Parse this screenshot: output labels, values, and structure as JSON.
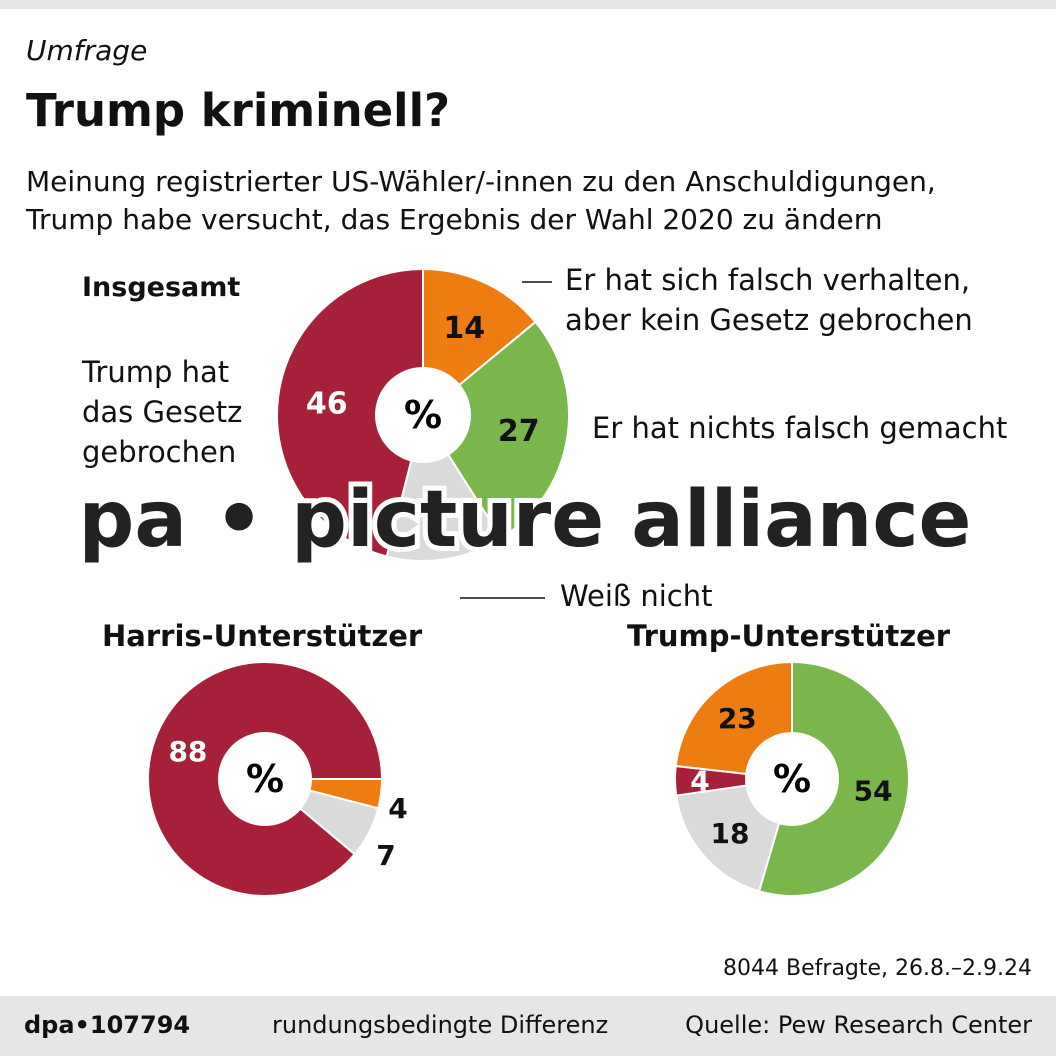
{
  "header": {
    "kicker": "Umfrage",
    "title": "Trump kriminell?",
    "subtitle_1": "Meinung registrierter US-Wähler/-innen zu den Anschuldigungen,",
    "subtitle_2": "Trump habe versucht, das Ergebnis der Wahl 2020 zu ändern"
  },
  "legend": {
    "broke_law_1": "Trump hat",
    "broke_law_2": "das Gesetz",
    "broke_law_3": "gebrochen",
    "wrong_1": "Er hat sich falsch verhalten,",
    "wrong_2": "aber kein Gesetz gebrochen",
    "nothing": "Er hat nichts falsch gemacht",
    "dont_know": "Weiß nicht"
  },
  "colors": {
    "broke_law": "#a6203a",
    "wrong": "#ee7d11",
    "nothing": "#79b74c",
    "dont_know": "#dadada"
  },
  "chart_data": [
    {
      "type": "pie",
      "title": "Insgesamt",
      "unit": "%",
      "slices": [
        {
          "category": "wrong",
          "value": 14
        },
        {
          "category": "nothing",
          "value": 27
        },
        {
          "category": "dont_know",
          "value": 13,
          "label_hidden": true
        },
        {
          "category": "broke_law",
          "value": 46
        }
      ]
    },
    {
      "type": "pie",
      "title": "Harris-Unterstützer",
      "unit": "%",
      "slices": [
        {
          "category": "wrong",
          "value": 4
        },
        {
          "category": "dont_know",
          "value": 7
        },
        {
          "category": "broke_law",
          "value": 88
        }
      ]
    },
    {
      "type": "pie",
      "title": "Trump-Unterstützer",
      "unit": "%",
      "slices": [
        {
          "category": "nothing",
          "value": 54
        },
        {
          "category": "dont_know",
          "value": 18
        },
        {
          "category": "broke_law",
          "value": 4
        },
        {
          "category": "wrong",
          "value": 23
        }
      ]
    }
  ],
  "footnote": "8044 Befragte, 26.8.–2.9.24",
  "footer": {
    "id": "dpa•107794",
    "note": "rundungsbedingte Differenz",
    "source": "Quelle: Pew Research Center"
  },
  "watermark": "pa • picture alliance"
}
